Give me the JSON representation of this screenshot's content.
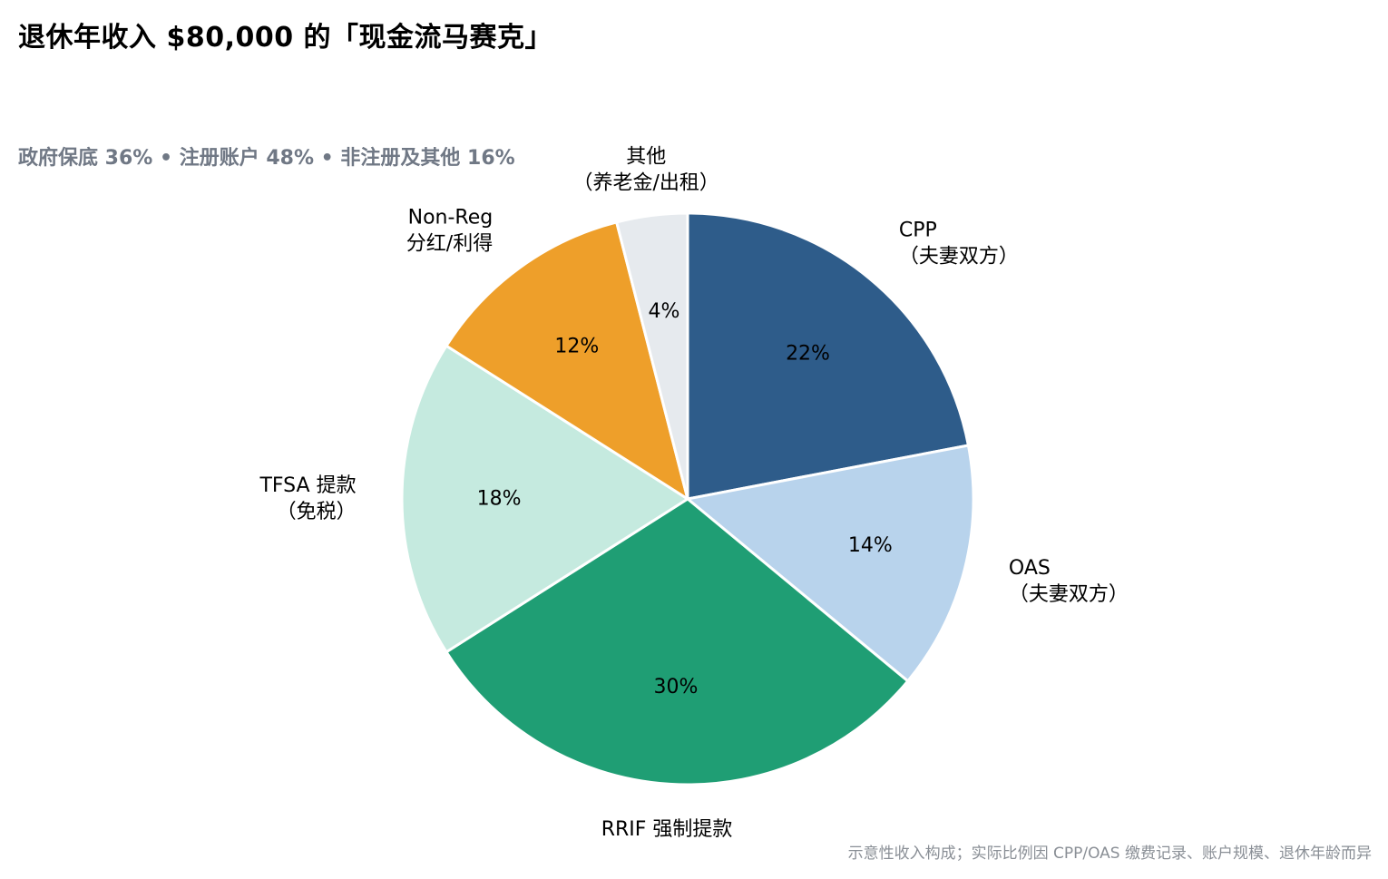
{
  "title": "退休年收入 $80,000 的「现金流马赛克」",
  "subtitle": "政府保底 36% • 注册账户 48% • 非注册及其他 16%",
  "footnote": "示意性收入构成；实际比例因 CPP/OAS 缴费记录、账户规模、退休年龄而异",
  "chart_data": {
    "type": "pie",
    "start_angle_deg": 0,
    "direction": "clockwise",
    "slices": [
      {
        "label_lines": [
          "CPP",
          "（夫妻双方）"
        ],
        "value": 22,
        "pct_text": "22%",
        "color": "#2e5c8a"
      },
      {
        "label_lines": [
          "OAS",
          "（夫妻双方）"
        ],
        "value": 14,
        "pct_text": "14%",
        "color": "#b8d3ec"
      },
      {
        "label_lines": [
          "RRIF 强制提款"
        ],
        "value": 30,
        "pct_text": "30%",
        "color": "#1f9e74"
      },
      {
        "label_lines": [
          "TFSA 提款",
          "（免税）"
        ],
        "value": 18,
        "pct_text": "18%",
        "color": "#c5eadf"
      },
      {
        "label_lines": [
          "Non-Reg",
          "分红/利得"
        ],
        "value": 12,
        "pct_text": "12%",
        "color": "#ee9f2a"
      },
      {
        "label_lines": [
          "其他",
          "（养老金/出租）"
        ],
        "value": 4,
        "pct_text": "4%",
        "color": "#e6eaee"
      }
    ]
  }
}
